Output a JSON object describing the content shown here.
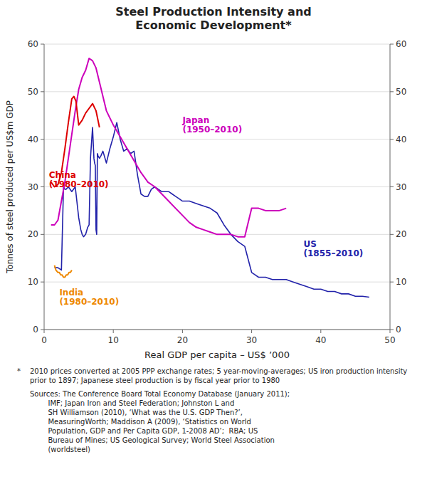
{
  "chart_data": {
    "type": "line",
    "title": "Steel Production Intensity and\nEconomic Development*",
    "xlabel": "Real GDP per capita – US$ ’000",
    "ylabel": "Tonnes of steel produced per US$m GDP",
    "xlim": [
      0,
      50
    ],
    "ylim": [
      0,
      60
    ],
    "xticks": [
      0,
      10,
      20,
      30,
      40,
      50
    ],
    "yticks": [
      0,
      10,
      20,
      30,
      40,
      50,
      60
    ],
    "y2lim": [
      0,
      60
    ],
    "y2ticks": [
      0,
      10,
      20,
      30,
      40,
      50,
      60
    ],
    "grid": true,
    "series": [
      {
        "color": "#2222aa",
        "x": [
          1.5,
          2.0,
          2.5,
          2.8,
          3.0,
          3.2,
          3.5,
          4.0,
          4.5,
          5.0,
          5.3,
          5.5,
          5.7,
          6.0,
          6.3,
          6.5,
          6.7,
          7.0,
          7.2,
          7.3,
          7.4,
          7.5,
          7.6,
          7.7,
          7.8,
          8.0,
          8.2,
          8.5,
          9.0,
          9.5,
          10.0,
          10.5,
          11.0,
          11.5,
          12.0,
          12.5,
          13.0,
          13.5,
          14.0,
          14.5,
          15.0,
          15.5,
          16.0,
          16.5,
          17.0,
          18.0,
          18.5,
          19.0,
          19.5,
          20.0,
          21.0,
          22.0,
          23.0,
          24.0,
          25.0,
          26.0,
          27.0,
          28.0,
          29.0,
          30.0,
          30.5,
          31.0,
          32.0,
          33.0,
          34.0,
          35.0,
          36.0,
          37.0,
          38.0,
          39.0,
          40.0,
          41.0,
          42.0,
          43.0,
          44.0,
          45.0,
          46.0,
          47.0
        ],
        "values": [
          13.0,
          13.0,
          12.5,
          30.0,
          29.5,
          29.5,
          30.0,
          29.0,
          30.0,
          23.5,
          21.0,
          20.0,
          19.5,
          20.0,
          21.5,
          22.0,
          36.0,
          42.5,
          36.0,
          35.0,
          34.5,
          21.0,
          20.0,
          37.0,
          36.5,
          36.0,
          36.5,
          37.5,
          35.0,
          38.0,
          40.5,
          43.5,
          40.0,
          37.5,
          38.0,
          37.0,
          37.5,
          32.5,
          28.5,
          28.0,
          28.0,
          29.5,
          30.0,
          29.5,
          29.0,
          29.0,
          28.5,
          28.0,
          27.5,
          27.0,
          27.0,
          26.5,
          26.0,
          25.5,
          24.5,
          22.0,
          20.0,
          18.5,
          17.5,
          12.0,
          11.5,
          11.0,
          11.0,
          10.5,
          10.5,
          10.5,
          10.0,
          9.5,
          9.0,
          8.5,
          8.5,
          8.0,
          8.0,
          7.5,
          7.5,
          7.0,
          7.0,
          6.8
        ]
      },
      {
        "color": "#cc00bb",
        "x": [
          1.0,
          1.5,
          2.0,
          2.5,
          3.0,
          3.5,
          4.0,
          4.5,
          5.0,
          5.5,
          6.0,
          6.5,
          7.0,
          7.5,
          8.0,
          9.0,
          10.0,
          11.0,
          12.0,
          13.0,
          14.0,
          15.0,
          16.0,
          17.0,
          18.0,
          19.0,
          20.0,
          21.0,
          22.0,
          23.0,
          24.0,
          25.0,
          26.0,
          27.0,
          28.0,
          29.0,
          30.0,
          31.0,
          32.0,
          33.0,
          34.0,
          35.0
        ],
        "values": [
          22.0,
          22.0,
          23.0,
          27.0,
          31.0,
          36.0,
          41.0,
          46.0,
          50.5,
          53.0,
          54.5,
          57.0,
          56.5,
          55.0,
          52.0,
          46.0,
          43.0,
          40.5,
          38.0,
          35.5,
          33.0,
          31.0,
          30.0,
          28.5,
          27.0,
          25.5,
          24.0,
          22.5,
          21.5,
          21.0,
          20.5,
          20.0,
          20.0,
          20.0,
          19.5,
          19.5,
          25.5,
          25.5,
          25.0,
          25.0,
          25.0,
          25.5
        ]
      },
      {
        "color": "#dd0000",
        "x": [
          1.0,
          1.5,
          2.0,
          2.5,
          3.0,
          3.5,
          4.0,
          4.3,
          4.6,
          5.0,
          5.5,
          6.0,
          6.5,
          7.0,
          7.5,
          8.0
        ],
        "values": [
          31.0,
          30.0,
          30.5,
          33.0,
          38.0,
          43.5,
          48.5,
          49.0,
          48.0,
          43.0,
          44.0,
          45.5,
          46.5,
          47.5,
          46.0,
          42.5
        ]
      },
      {
        "color": "#ee8800",
        "x": [
          1.5,
          1.7,
          2.0,
          2.2,
          2.4,
          2.6,
          2.8,
          3.0,
          3.2,
          3.4,
          3.6,
          3.8,
          4.0
        ],
        "values": [
          13.5,
          12.5,
          12.0,
          12.0,
          11.5,
          11.5,
          11.0,
          11.0,
          11.5,
          11.5,
          12.0,
          12.0,
          12.5
        ]
      }
    ],
    "annotations": [
      {
        "text": "China\n(1980–2010)",
        "x": 0.7,
        "y": 31.5,
        "color": "#dd0000"
      },
      {
        "text": "Japan\n(1950–2010)",
        "x": 20.0,
        "y": 43.0,
        "color": "#cc00bb"
      },
      {
        "text": "US\n(1855–2010)",
        "x": 37.5,
        "y": 17.0,
        "color": "#2222aa"
      },
      {
        "text": "India\n(1980–2010)",
        "x": 2.2,
        "y": 6.8,
        "color": "#ee8800"
      }
    ],
    "footnotes": [
      {
        "marker": "*",
        "text": "2010 prices converted at 2005 PPP exchange rates; 5 year-moving-averages; US iron production intensity prior to 1897; Japanese steel production is by fiscal year prior to 1980"
      },
      {
        "text": "Sources: The Conference Board Total Economy Database (January 2011);\n        IMF; Japan Iron and Steel Federation; Johnston L and\n        SH Williamson (2010), ‘What was the U.S. GDP Then?’,\n        MeasuringWorth; Maddison A (2009), ‘Statistics on World\n        Population, GDP and Per Capita GDP, 1-2008 AD’;  RBA; US\n        Bureau of Mines; US Geological Survey; World Steel Association\n        (worldsteel)"
      }
    ]
  }
}
